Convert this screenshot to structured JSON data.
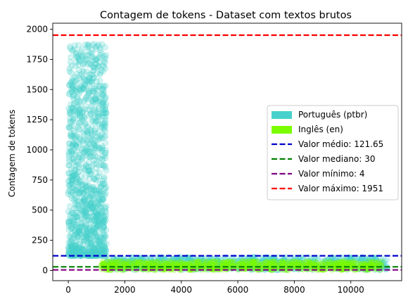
{
  "chart_data": {
    "type": "scatter",
    "title": "Contagem de tokens - Dataset com textos brutos",
    "xlabel": "",
    "ylabel": "Contagem de tokens",
    "xlim": [
      -550,
      11800
    ],
    "ylim": [
      -85,
      2050
    ],
    "xticks": [
      0,
      2000,
      4000,
      6000,
      8000,
      10000
    ],
    "yticks": [
      0,
      250,
      500,
      750,
      1000,
      1250,
      1500,
      1750,
      2000
    ],
    "grid": false,
    "legend_position": "center-right",
    "series": [
      {
        "name": "Português (ptbr)",
        "color": "#48d1cc",
        "clusters": [
          {
            "x_range": [
              0,
              1350
            ],
            "y_range": [
              120,
              1880
            ],
            "count": 1200
          },
          {
            "x_range": [
              1350,
              11300
            ],
            "y_range": [
              4,
              110
            ],
            "count": 800
          }
        ]
      },
      {
        "name": "Inglês (en)",
        "color": "#7cfc00",
        "clusters": [
          {
            "x_range": [
              1150,
              11100
            ],
            "y_range": [
              4,
              75
            ],
            "count": 700
          }
        ]
      }
    ],
    "reference_lines": [
      {
        "name": "Valor médio: 121.65",
        "value": 121.65,
        "color": "#0000cd"
      },
      {
        "name": "Valor mediano: 30",
        "value": 30,
        "color": "#008000"
      },
      {
        "name": "Valor mínimo: 4",
        "value": 4,
        "color": "#800080"
      },
      {
        "name": "Valor máximo: 1951",
        "value": 1951,
        "color": "#ff0000"
      }
    ]
  }
}
